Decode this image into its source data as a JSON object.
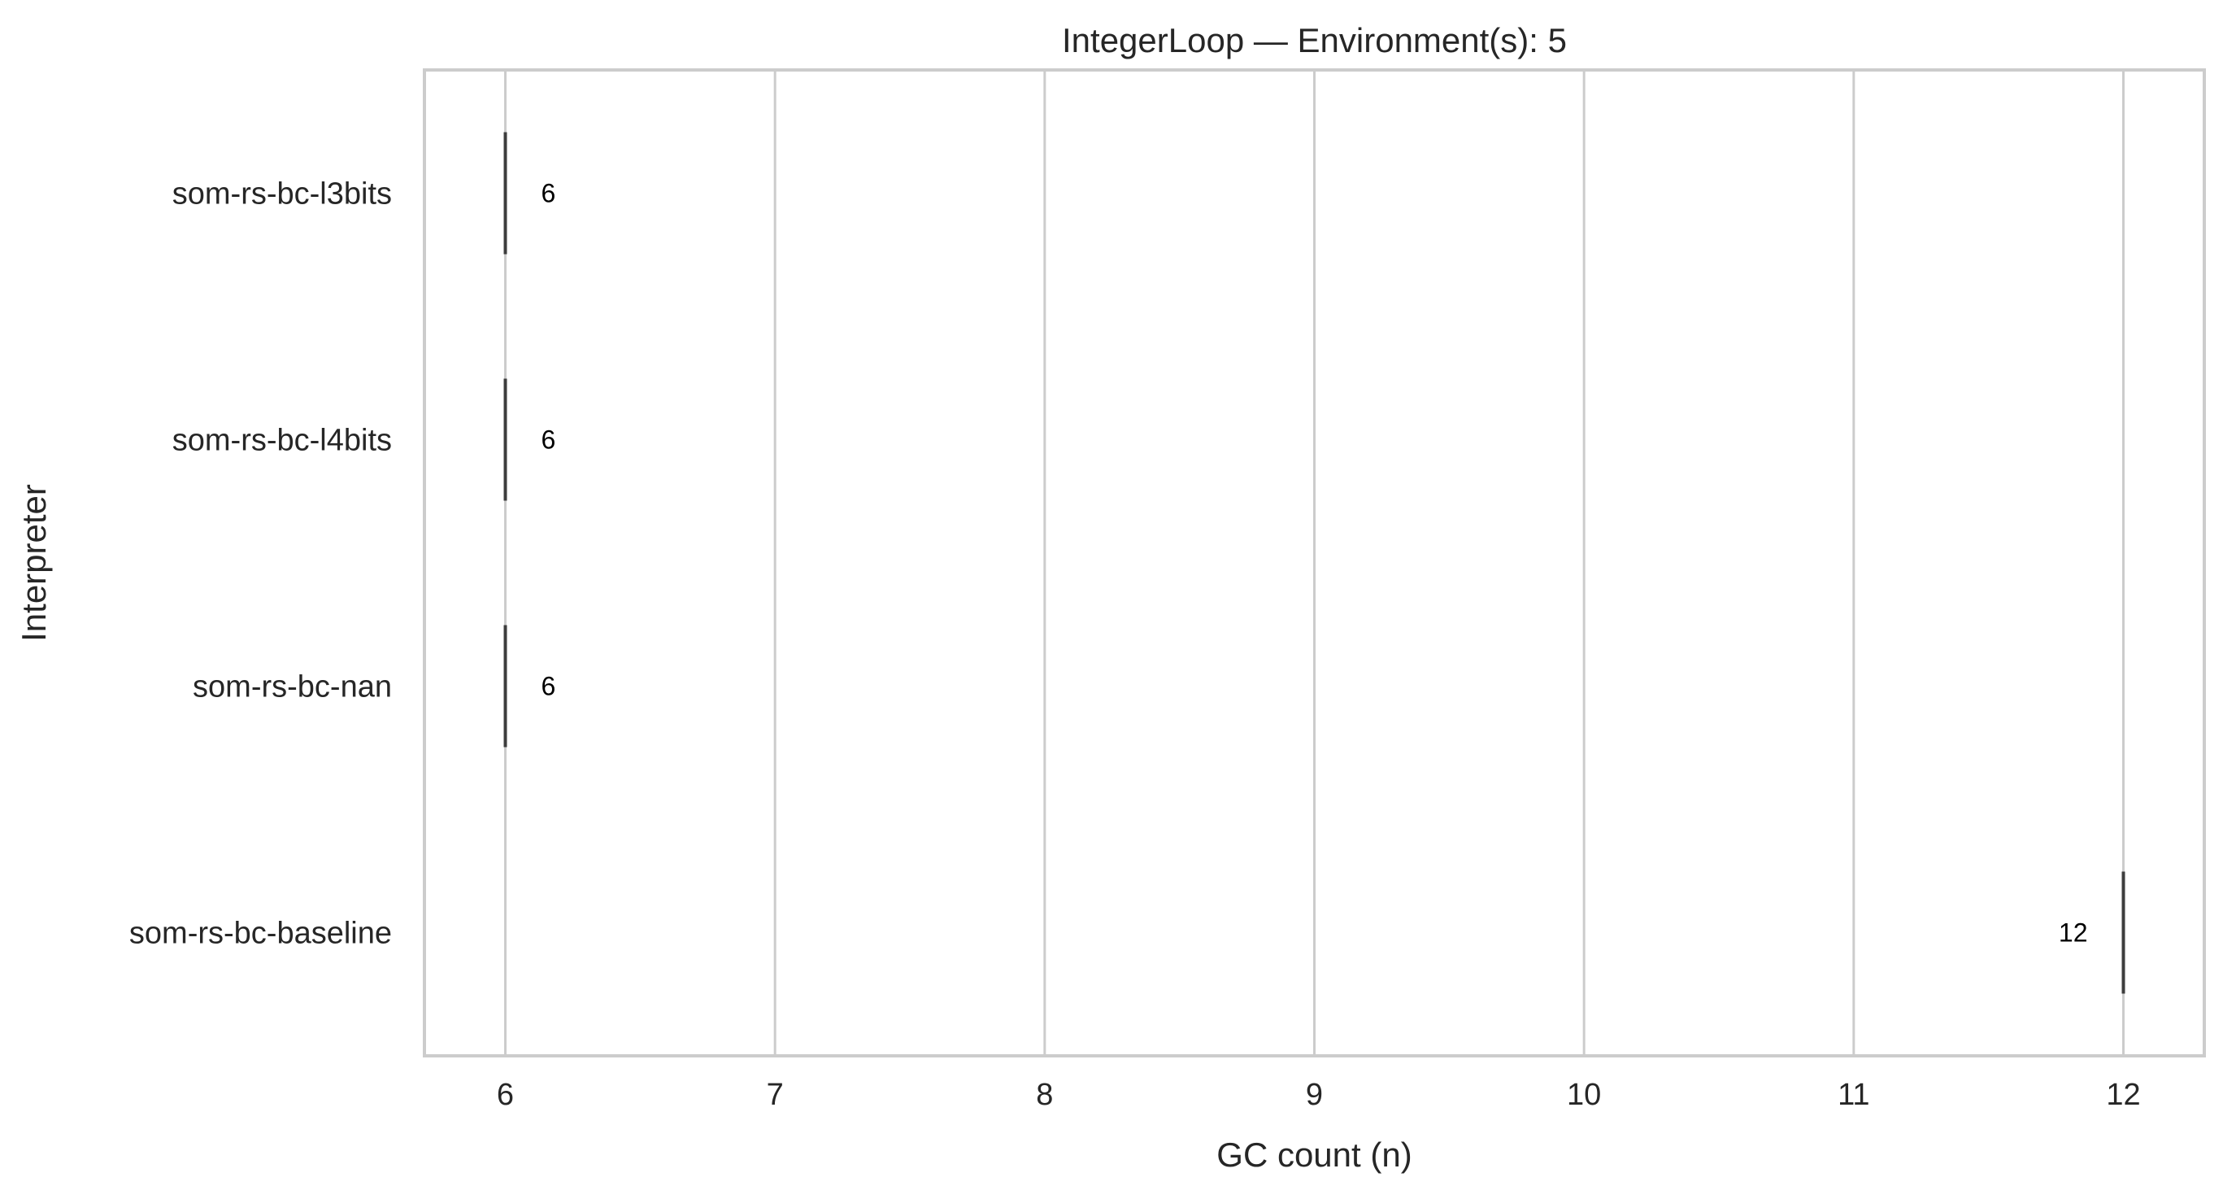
{
  "chart_data": {
    "type": "box",
    "orientation": "horizontal",
    "title": "IntegerLoop — Environment(s): 5",
    "xlabel": "GC count (n)",
    "ylabel": "Interpreter",
    "xlim": [
      5.7,
      12.3
    ],
    "xticks": [
      6,
      7,
      8,
      9,
      10,
      11,
      12
    ],
    "xtick_labels": [
      "6",
      "7",
      "8",
      "9",
      "10",
      "11",
      "12"
    ],
    "grid": "vertical",
    "categories": [
      "som-rs-bc-l3bits",
      "som-rs-bc-l4bits",
      "som-rs-bc-nan",
      "som-rs-bc-baseline"
    ],
    "values": [
      6,
      6,
      6,
      12
    ],
    "data_labels": [
      "6",
      "6",
      "6",
      "12"
    ],
    "colors": {
      "mark": "#3d3d3d",
      "grid": "#cccccc",
      "frame": "#cccccc",
      "text": "#262626",
      "background": "#ffffff"
    }
  }
}
